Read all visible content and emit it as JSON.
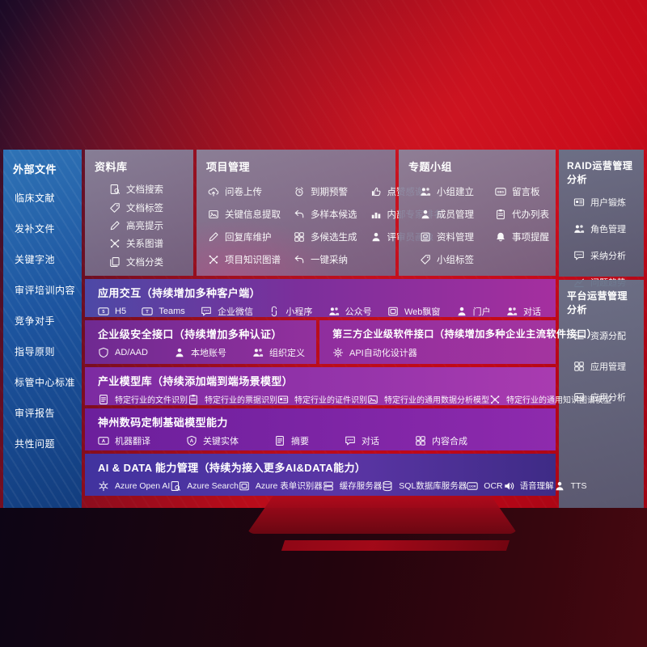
{
  "sidebar": {
    "title": "外部文件",
    "items": [
      "临床文献",
      "发补文件",
      "关键字池",
      "审评培训内容",
      "竞争对手",
      "指导原则",
      "标管中心标准",
      "审评报告",
      "共性问题"
    ]
  },
  "panels": {
    "repository": {
      "title": "资料库",
      "items": [
        {
          "label": "文档搜索",
          "icon": "doc-search"
        },
        {
          "label": "文档标签",
          "icon": "doc-tag"
        },
        {
          "label": "高亮提示",
          "icon": "highlight"
        },
        {
          "label": "关系图谱",
          "icon": "relation-graph"
        },
        {
          "label": "文档分类",
          "icon": "doc-category"
        }
      ]
    },
    "project": {
      "title": "项目管理",
      "items": [
        {
          "label": "问卷上传",
          "icon": "questionnaire-upload"
        },
        {
          "label": "关键信息提取",
          "icon": "key-info-extract"
        },
        {
          "label": "回复库维护",
          "icon": "reply-lib-maintain"
        },
        {
          "label": "项目知识图谱",
          "icon": "project-knowledge-graph"
        },
        {
          "label": "到期预警",
          "icon": "due-warning"
        },
        {
          "label": "多样本候选",
          "icon": "multi-sample-candidate"
        },
        {
          "label": "多候选生成",
          "icon": "multi-candidate-generate"
        },
        {
          "label": "一键采纳",
          "icon": "one-click-adopt"
        },
        {
          "label": "点赞感谢",
          "icon": "praise-thanks"
        },
        {
          "label": "内部专家排名",
          "icon": "internal-expert-ranking"
        },
        {
          "label": "评审员画像",
          "icon": "reviewer-portrait"
        }
      ]
    },
    "topic_group": {
      "title": "专题小组",
      "items": [
        {
          "label": "小组建立",
          "icon": "group-create"
        },
        {
          "label": "成员管理",
          "icon": "member-manage"
        },
        {
          "label": "资料管理",
          "icon": "data-manage"
        },
        {
          "label": "小组标签",
          "icon": "group-tag"
        },
        {
          "label": "留言板",
          "icon": "message-board"
        },
        {
          "label": "代办列表",
          "icon": "todo-list"
        },
        {
          "label": "事项提醒",
          "icon": "matter-remind"
        }
      ]
    },
    "raid_ops": {
      "title": "RAID运营管理分析",
      "items": [
        {
          "label": "用户锻炼",
          "icon": "user-profile-card"
        },
        {
          "label": "角色管理",
          "icon": "role-manage"
        },
        {
          "label": "采纳分析",
          "icon": "adoption-analysis"
        },
        {
          "label": "问题趋势",
          "icon": "issue-trend"
        }
      ]
    },
    "platform_ops": {
      "title": "平台运营管理分析",
      "items": [
        {
          "label": "资源分配",
          "icon": "resource-allocation"
        },
        {
          "label": "应用管理",
          "icon": "app-manage"
        },
        {
          "label": "应用分析",
          "icon": "app-analysis"
        }
      ]
    }
  },
  "bands": {
    "interaction": {
      "title": "应用交互（持续增加多种客户端）",
      "items": [
        {
          "label": "H5",
          "icon": "h5"
        },
        {
          "label": "Teams",
          "icon": "teams"
        },
        {
          "label": "企业微信",
          "icon": "wecom"
        },
        {
          "label": "小程序",
          "icon": "mini-program"
        },
        {
          "label": "公众号",
          "icon": "official-account"
        },
        {
          "label": "Web飘窗",
          "icon": "web-popup"
        },
        {
          "label": "门户",
          "icon": "portal"
        },
        {
          "label": "对话",
          "icon": "dialogue"
        }
      ]
    },
    "security": {
      "title": "企业级安全接口（持续增加多种认证）",
      "items": [
        {
          "label": "AD/AAD",
          "icon": "ad-aad"
        },
        {
          "label": "本地账号",
          "icon": "local-account"
        },
        {
          "label": "组织定义",
          "icon": "org-definition"
        }
      ]
    },
    "third_party": {
      "title": "第三方企业级软件接口（持续增加多种企业主流软件接口）",
      "items": [
        {
          "label": "API自动化设计器",
          "icon": "api-auto-designer"
        }
      ]
    },
    "industry_models": {
      "title": "产业模型库（持续添加端到端场景模型）",
      "items": [
        {
          "label": "特定行业的文件识别",
          "icon": "industry-file-recognition"
        },
        {
          "label": "特定行业的票据识别",
          "icon": "industry-receipt-recognition"
        },
        {
          "label": "特定行业的证件识别",
          "icon": "industry-certificate-recognition"
        },
        {
          "label": "特定行业的通用数据分析模型",
          "icon": "industry-data-analysis-model"
        },
        {
          "label": "特定行业的通用知识图谱模型",
          "icon": "industry-knowledge-graph-model"
        }
      ]
    },
    "base_models": {
      "title": "神州数码定制基础模型能力",
      "items": [
        {
          "label": "机器翻译",
          "icon": "machine-translation"
        },
        {
          "label": "关键实体",
          "icon": "key-entity"
        },
        {
          "label": "摘要",
          "icon": "summary"
        },
        {
          "label": "对话",
          "icon": "chat-dialogue"
        },
        {
          "label": "内容合成",
          "icon": "content-synthesis"
        }
      ]
    },
    "ai_data": {
      "title": "AI & DATA 能力管理（持续为接入更多AI&DATA能力）",
      "items": [
        {
          "label": "Azure Open AI",
          "icon": "azure-openai"
        },
        {
          "label": "Azure Search",
          "icon": "azure-search"
        },
        {
          "label": "Azure 表单识别器",
          "icon": "azure-form-recognizer"
        },
        {
          "label": "缓存服务器",
          "icon": "cache-server"
        },
        {
          "label": "SQL数据库服务器",
          "icon": "sql-db-server"
        },
        {
          "label": "OCR",
          "icon": "ocr"
        },
        {
          "label": "语音理解",
          "icon": "speech-understanding"
        },
        {
          "label": "TTS",
          "icon": "tts"
        }
      ]
    }
  },
  "colors": {
    "background_red": "#c00717",
    "sidebar_blue": "#1d55a0",
    "panel_gray": "#7b7792",
    "slate_panel": "#5f6e87",
    "band_purple": "#8e2aad",
    "band_indigo": "#41339f"
  }
}
